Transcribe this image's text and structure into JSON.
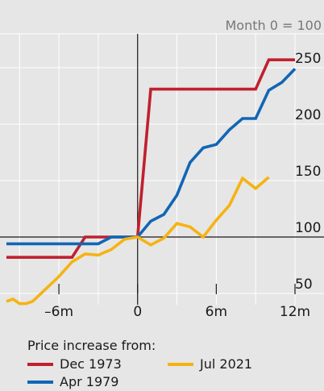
{
  "chart_data": {
    "type": "line",
    "note": "Month 0 = 100",
    "x_range": [
      -10,
      12
    ],
    "y_range": [
      40,
      280
    ],
    "x_ticks": [
      {
        "value": -6,
        "label": "–6m"
      },
      {
        "value": 0,
        "label": "0"
      },
      {
        "value": 6,
        "label": "6m"
      },
      {
        "value": 12,
        "label": "12m"
      }
    ],
    "y_ticks": [
      {
        "value": 50,
        "label": "50"
      },
      {
        "value": 100,
        "label": "100"
      },
      {
        "value": 150,
        "label": "150"
      },
      {
        "value": 200,
        "label": "200"
      },
      {
        "value": 250,
        "label": "250"
      }
    ],
    "gridlines": true,
    "legend_title": "Price increase from:",
    "series": [
      {
        "name": "Dec 1973",
        "color": "#c0202e",
        "points": [
          [
            -10,
            82
          ],
          [
            -5,
            82
          ],
          [
            -4,
            100
          ],
          [
            -2,
            100
          ],
          [
            0,
            100
          ],
          [
            1,
            231
          ],
          [
            9,
            231
          ],
          [
            10,
            257
          ],
          [
            11,
            257
          ],
          [
            12,
            257
          ]
        ]
      },
      {
        "name": "Apr 1979",
        "color": "#1166b5",
        "points": [
          [
            -10,
            94
          ],
          [
            -3,
            94
          ],
          [
            -2,
            100
          ],
          [
            0,
            100
          ],
          [
            1,
            114
          ],
          [
            2,
            120
          ],
          [
            3,
            137
          ],
          [
            4,
            166
          ],
          [
            5,
            179
          ],
          [
            6,
            182
          ],
          [
            7,
            195
          ],
          [
            8,
            205
          ],
          [
            9,
            205
          ],
          [
            10,
            230
          ],
          [
            11,
            237
          ],
          [
            12,
            249
          ]
        ]
      },
      {
        "name": "Jul 2021",
        "color": "#f5b314",
        "points": [
          [
            -10,
            43
          ],
          [
            -9.5,
            45
          ],
          [
            -9,
            41
          ],
          [
            -8.5,
            41
          ],
          [
            -8,
            43
          ],
          [
            -7,
            54
          ],
          [
            -6,
            65
          ],
          [
            -5,
            78
          ],
          [
            -4,
            85
          ],
          [
            -3,
            84
          ],
          [
            -2,
            89
          ],
          [
            -1,
            98
          ],
          [
            0,
            100
          ],
          [
            1,
            93
          ],
          [
            2,
            99
          ],
          [
            3,
            112
          ],
          [
            4,
            109
          ],
          [
            5,
            100
          ],
          [
            6,
            115
          ],
          [
            7,
            128
          ],
          [
            8,
            152
          ],
          [
            9,
            143
          ],
          [
            10,
            153
          ]
        ]
      }
    ]
  }
}
